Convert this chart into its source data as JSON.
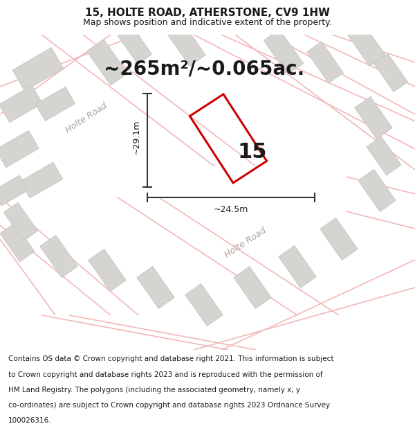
{
  "title": "15, HOLTE ROAD, ATHERSTONE, CV9 1HW",
  "subtitle": "Map shows position and indicative extent of the property.",
  "area_text": "~265m²/~0.065ac.",
  "width_label": "~24.5m",
  "height_label": "~29.1m",
  "house_number": "15",
  "footer_lines": [
    "Contains OS data © Crown copyright and database right 2021. This information is subject",
    "to Crown copyright and database rights 2023 and is reproduced with the permission of",
    "HM Land Registry. The polygons (including the associated geometry, namely x, y",
    "co-ordinates) are subject to Crown copyright and database rights 2023 Ordnance Survey",
    "100026316."
  ],
  "map_bg": "#eeede9",
  "plot_color_red": "#cc0000",
  "road_color": "#f2b8b8",
  "building_color": "#d5d4d0",
  "building_edge": "#c5c4c0",
  "road_label_color": "#aaa098",
  "dim_color": "#333333",
  "text_color": "#1a1a1a",
  "white": "#ffffff",
  "title_fontsize": 11,
  "subtitle_fontsize": 9,
  "area_fontsize": 20,
  "number_fontsize": 22,
  "dim_fontsize": 9,
  "road_label_fontsize": 9,
  "footer_fontsize": 7.5
}
